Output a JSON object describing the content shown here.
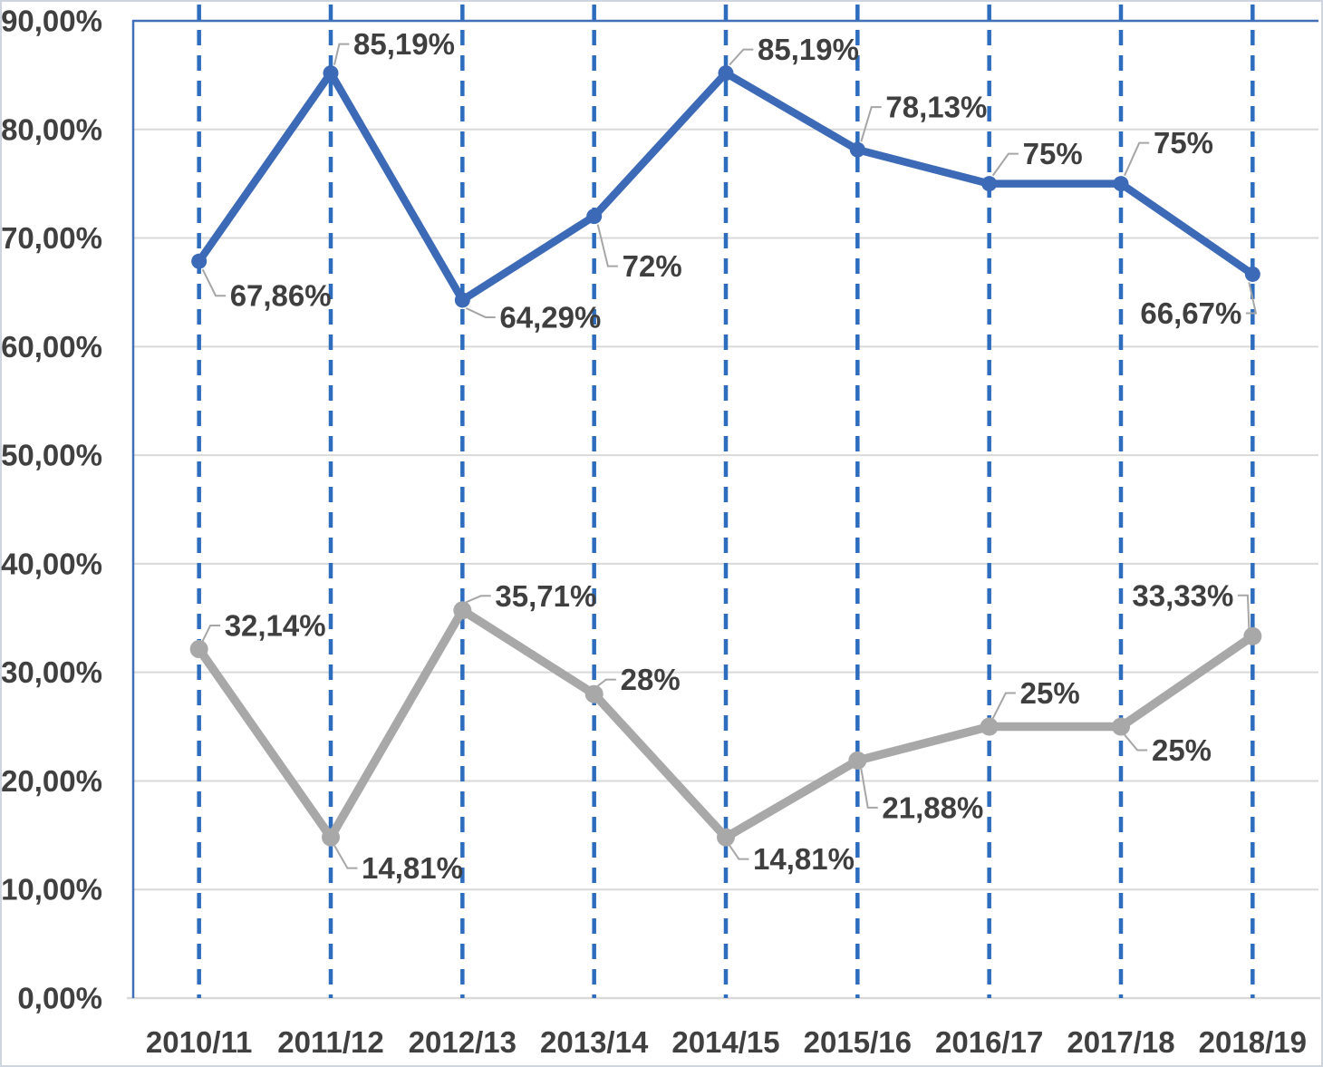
{
  "chart_data": {
    "type": "line",
    "title": "",
    "xlabel": "",
    "ylabel": "",
    "legend": "none",
    "categories": [
      "2010/11",
      "2011/12",
      "2012/13",
      "2013/14",
      "2014/15",
      "2015/16",
      "2016/17",
      "2017/18",
      "2018/19"
    ],
    "y_axis": {
      "min": 0,
      "max": 90,
      "step": 10,
      "tick_labels": [
        "0,00%",
        "10,00%",
        "20,00%",
        "30,00%",
        "40,00%",
        "50,00%",
        "60,00%",
        "70,00%",
        "80,00%",
        "90,00%"
      ],
      "grid": true
    },
    "vertical_gridlines": {
      "style": "dashed",
      "color": "#2e6cbe"
    },
    "series": [
      {
        "name": "upper-blue-series",
        "color": "#3c6ab6",
        "values": [
          67.86,
          85.19,
          64.29,
          72,
          85.19,
          78.13,
          75,
          75,
          66.67
        ],
        "data_labels": [
          "67,86%",
          "85,19%",
          "64,29%",
          "72%",
          "85,19%",
          "78,13%",
          "75%",
          "75%",
          "66,67%"
        ],
        "label_offsets": [
          [
            90,
            38
          ],
          [
            81,
            -32
          ],
          [
            97,
            19
          ],
          [
            64,
            55
          ],
          [
            91,
            -26
          ],
          [
            87,
            -47
          ],
          [
            70,
            -33
          ],
          [
            69,
            -45
          ],
          [
            -68,
            43
          ]
        ],
        "marker_radius": 8.5,
        "line_width": 8.5
      },
      {
        "name": "lower-gray-series",
        "color": "#a8a8a8",
        "values": [
          32.14,
          14.81,
          35.71,
          28,
          14.81,
          21.88,
          25,
          25,
          33.33
        ],
        "data_labels": [
          "32,14%",
          "14,81%",
          "35,71%",
          "28%",
          "14,81%",
          "21,88%",
          "25%",
          "25%",
          "33,33%"
        ],
        "label_offsets": [
          [
            84,
            -26
          ],
          [
            90,
            34
          ],
          [
            92,
            -16
          ],
          [
            62,
            -16
          ],
          [
            86,
            24
          ],
          [
            83,
            52
          ],
          [
            67,
            -37
          ],
          [
            67,
            26
          ],
          [
            -77,
            -45
          ]
        ],
        "marker_radius": 10,
        "line_width": 9.5
      }
    ]
  },
  "colors": {
    "outer_border": "#cfd5de",
    "plot_border_blue": "#4170b8",
    "h_gridline": "#d9d9d9",
    "axis_line": "#d9d9d9",
    "tick_text": "#404040",
    "data_label_text": "#3f3f3f",
    "leader_line": "#a6a6a6",
    "background": "#ffffff"
  }
}
